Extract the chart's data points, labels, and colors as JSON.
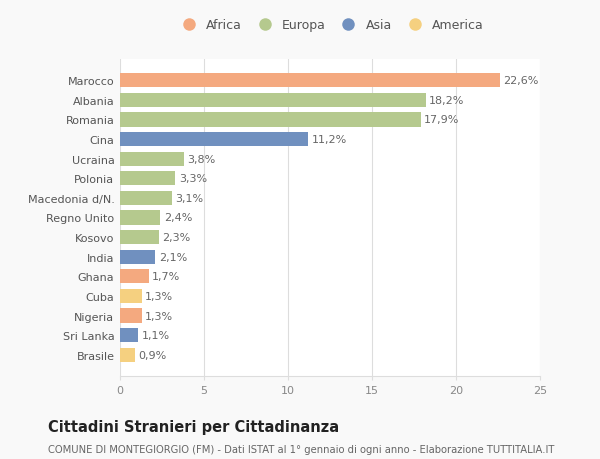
{
  "countries": [
    "Marocco",
    "Albania",
    "Romania",
    "Cina",
    "Ucraina",
    "Polonia",
    "Macedonia d/N.",
    "Regno Unito",
    "Kosovo",
    "India",
    "Ghana",
    "Cuba",
    "Nigeria",
    "Sri Lanka",
    "Brasile"
  ],
  "values": [
    22.6,
    18.2,
    17.9,
    11.2,
    3.8,
    3.3,
    3.1,
    2.4,
    2.3,
    2.1,
    1.7,
    1.3,
    1.3,
    1.1,
    0.9
  ],
  "labels": [
    "22,6%",
    "18,2%",
    "17,9%",
    "11,2%",
    "3,8%",
    "3,3%",
    "3,1%",
    "2,4%",
    "2,3%",
    "2,1%",
    "1,7%",
    "1,3%",
    "1,3%",
    "1,1%",
    "0,9%"
  ],
  "continents": [
    "Africa",
    "Europa",
    "Europa",
    "Asia",
    "Europa",
    "Europa",
    "Europa",
    "Europa",
    "Europa",
    "Asia",
    "Africa",
    "America",
    "Africa",
    "Asia",
    "America"
  ],
  "colors": {
    "Africa": "#F4A97F",
    "Europa": "#B5C98E",
    "Asia": "#7090BF",
    "America": "#F5D080"
  },
  "legend_order": [
    "Africa",
    "Europa",
    "Asia",
    "America"
  ],
  "title": "Cittadini Stranieri per Cittadinanza",
  "subtitle": "COMUNE DI MONTEGIORGIO (FM) - Dati ISTAT al 1° gennaio di ogni anno - Elaborazione TUTTITALIA.IT",
  "xlim": [
    0,
    25
  ],
  "xticks": [
    0,
    5,
    10,
    15,
    20,
    25
  ],
  "background_color": "#f9f9f9",
  "plot_bg_color": "#ffffff",
  "grid_color": "#dddddd",
  "label_fontsize": 8,
  "tick_fontsize": 8,
  "title_fontsize": 10.5,
  "subtitle_fontsize": 7.2,
  "bar_height": 0.72,
  "label_color": "#666666",
  "ytick_color": "#555555",
  "xtick_color": "#888888"
}
